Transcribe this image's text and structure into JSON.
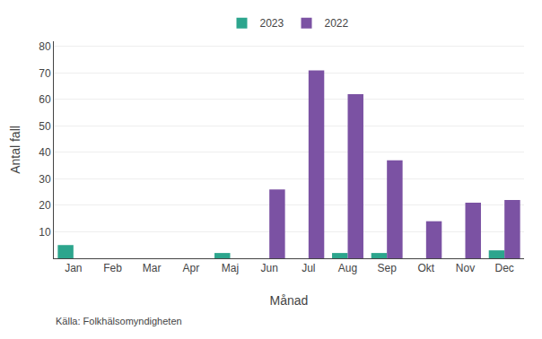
{
  "chart_data": {
    "type": "bar",
    "ylabel": "Antal fall",
    "xlabel": "Månad",
    "annotations": [
      "Källa: Folkhälsomyndigheten"
    ],
    "categories": [
      "Jan",
      "Feb",
      "Mar",
      "Apr",
      "Maj",
      "Jun",
      "Jul",
      "Aug",
      "Sep",
      "Okt",
      "Nov",
      "Dec"
    ],
    "series": [
      {
        "name": "2023",
        "color": "#2ca58d",
        "values": [
          5,
          0,
          0,
          0,
          2,
          0,
          0,
          2,
          2,
          0,
          0,
          3
        ]
      },
      {
        "name": "2022",
        "color": "#7b52a3",
        "values": [
          0,
          0,
          0,
          0,
          0,
          26,
          71,
          62,
          37,
          14,
          21,
          22
        ]
      }
    ],
    "ylim": [
      0,
      82
    ],
    "yticks": [
      10,
      20,
      30,
      40,
      50,
      60,
      70,
      80
    ],
    "grid": true,
    "legend": "top"
  }
}
